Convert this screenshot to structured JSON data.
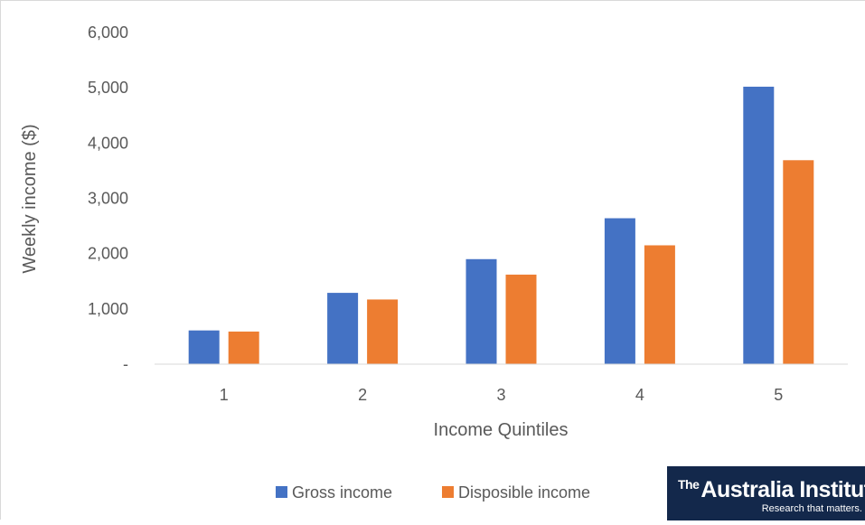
{
  "chart_data": {
    "type": "bar",
    "categories": [
      "1",
      "2",
      "3",
      "4",
      "5"
    ],
    "series": [
      {
        "name": "Gross income",
        "values": [
          610,
          1290,
          1900,
          2640,
          5020
        ],
        "color": "#4472c4"
      },
      {
        "name": "Disposible income",
        "values": [
          590,
          1170,
          1620,
          2150,
          3690
        ],
        "color": "#ed7d31"
      }
    ],
    "xlabel": "Income Quintiles",
    "ylabel": "Weekly income ($)",
    "ylim": [
      0,
      6000
    ],
    "yticks": [
      0,
      1000,
      2000,
      3000,
      4000,
      5000,
      6000
    ],
    "ytick_labels": [
      "-",
      "1,000",
      "2,000",
      "3,000",
      "4,000",
      "5,000",
      "6,000"
    ],
    "grid": false,
    "legend_position": "bottom"
  },
  "logo": {
    "prefix": "The",
    "name": "Australia Institute",
    "tagline": "Research that matters."
  }
}
